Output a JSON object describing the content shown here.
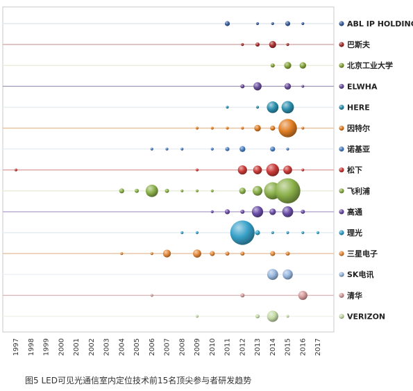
{
  "chart_data": {
    "type": "scatter",
    "subtype": "bubble",
    "caption": "图5 LED可见光通信室内定位技术前15名顶尖参与者研发趋势",
    "xlabel": "",
    "ylabel": "",
    "xlim": [
      1996,
      2018
    ],
    "x_ticks": [
      "1997",
      "1998",
      "1999",
      "2000",
      "2001",
      "2002",
      "2003",
      "2004",
      "2005",
      "2006",
      "2007",
      "2008",
      "2009",
      "2010",
      "2011",
      "2012",
      "2013",
      "2014",
      "2015",
      "2016",
      "2017"
    ],
    "legend_position": "right",
    "colors": {
      "ABL IP HOLDING": "#3a5fa0",
      "巴斯夫": "#a5312f",
      "北京工业大学": "#86a33c",
      "ELWHA": "#6a4f9a",
      "HERE": "#2d8fae",
      "因特尔": "#e07e25",
      "诺基亚": "#4a80c4",
      "松下": "#c93a38",
      "飞利浦": "#8bb04a",
      "高通": "#6c4fa8",
      "理光": "#38a1c9",
      "三星电子": "#e38a3c",
      "SK电讯": "#98b6de",
      "清华": "#d49b9b",
      "VERIZON": "#c5dba7"
    },
    "line_colors": {
      "ABL IP HOLDING": "#e3e7ee",
      "巴斯夫": "#d6aaaa",
      "北京工业大学": "#e6ecd8",
      "ELWHA": "#a9a0bd",
      "HERE": "#e4ecef",
      "因特尔": "#e8c3a2",
      "诺基亚": "#e7ecf3",
      "松下": "#dca5a4",
      "飞利浦": "#e6ecd8",
      "高通": "#b3a8cb",
      "理光": "#e4eef3",
      "三星电子": "#e6c0a0",
      "SK电讯": "#eceff5",
      "清华": "#dcbcbc",
      "VERIZON": "#f0f3ea"
    },
    "series": [
      {
        "name": "ABL IP HOLDING",
        "points": [
          [
            2011,
            3
          ],
          [
            2013,
            1
          ],
          [
            2014,
            1
          ],
          [
            2015,
            3
          ],
          [
            2016,
            1
          ]
        ]
      },
      {
        "name": "巴斯夫",
        "points": [
          [
            2012,
            1
          ],
          [
            2013,
            2
          ],
          [
            2014,
            6
          ],
          [
            2015,
            1
          ]
        ]
      },
      {
        "name": "北京工业大学",
        "points": [
          [
            2014,
            2
          ],
          [
            2015,
            6
          ],
          [
            2016,
            5
          ]
        ]
      },
      {
        "name": "ELWHA",
        "points": [
          [
            2012,
            2
          ],
          [
            2013,
            8
          ],
          [
            2015,
            5
          ],
          [
            2016,
            1
          ]
        ]
      },
      {
        "name": "HERE",
        "points": [
          [
            2011,
            1
          ],
          [
            2013,
            1
          ],
          [
            2014,
            16
          ],
          [
            2015,
            18
          ]
        ]
      },
      {
        "name": "因特尔",
        "points": [
          [
            2009,
            1
          ],
          [
            2010,
            1
          ],
          [
            2011,
            1
          ],
          [
            2012,
            1
          ],
          [
            2013,
            5
          ],
          [
            2014,
            3
          ],
          [
            2015,
            40
          ],
          [
            2016,
            1
          ]
        ]
      },
      {
        "name": "诺基亚",
        "points": [
          [
            2006,
            1
          ],
          [
            2007,
            1
          ],
          [
            2008,
            1
          ],
          [
            2010,
            1
          ],
          [
            2011,
            2
          ],
          [
            2012,
            4
          ],
          [
            2014,
            3
          ],
          [
            2015,
            1
          ]
        ]
      },
      {
        "name": "松下",
        "points": [
          [
            1997,
            1
          ],
          [
            2009,
            1
          ],
          [
            2012,
            10
          ],
          [
            2013,
            9
          ],
          [
            2014,
            19
          ],
          [
            2015,
            9
          ],
          [
            2016,
            1
          ]
        ]
      },
      {
        "name": "飞利浦",
        "points": [
          [
            2004,
            3
          ],
          [
            2005,
            2
          ],
          [
            2006,
            18
          ],
          [
            2007,
            2
          ],
          [
            2008,
            1
          ],
          [
            2009,
            1
          ],
          [
            2010,
            1
          ],
          [
            2012,
            5
          ],
          [
            2013,
            11
          ],
          [
            2014,
            35
          ],
          [
            2015,
            75
          ]
        ]
      },
      {
        "name": "高通",
        "points": [
          [
            2010,
            1
          ],
          [
            2011,
            3
          ],
          [
            2012,
            2
          ],
          [
            2013,
            15
          ],
          [
            2014,
            5
          ],
          [
            2015,
            14
          ],
          [
            2016,
            2
          ]
        ]
      },
      {
        "name": "理光",
        "points": [
          [
            2008,
            1
          ],
          [
            2009,
            1
          ],
          [
            2012,
            70
          ],
          [
            2013,
            3
          ],
          [
            2014,
            1
          ],
          [
            2015,
            1
          ],
          [
            2016,
            1
          ],
          [
            2017,
            1
          ]
        ]
      },
      {
        "name": "三星电子",
        "points": [
          [
            2004,
            1
          ],
          [
            2006,
            1
          ],
          [
            2007,
            7
          ],
          [
            2009,
            8
          ],
          [
            2010,
            3
          ],
          [
            2011,
            2
          ],
          [
            2012,
            2
          ],
          [
            2014,
            3
          ],
          [
            2015,
            2
          ]
        ]
      },
      {
        "name": "SK电讯",
        "points": [
          [
            2014,
            14
          ],
          [
            2015,
            12
          ]
        ]
      },
      {
        "name": "清华",
        "points": [
          [
            2006,
            1
          ],
          [
            2012,
            2
          ],
          [
            2016,
            10
          ]
        ]
      },
      {
        "name": "VERIZON",
        "points": [
          [
            2009,
            1
          ],
          [
            2013,
            2
          ],
          [
            2014,
            15
          ],
          [
            2015,
            1
          ]
        ]
      }
    ]
  }
}
